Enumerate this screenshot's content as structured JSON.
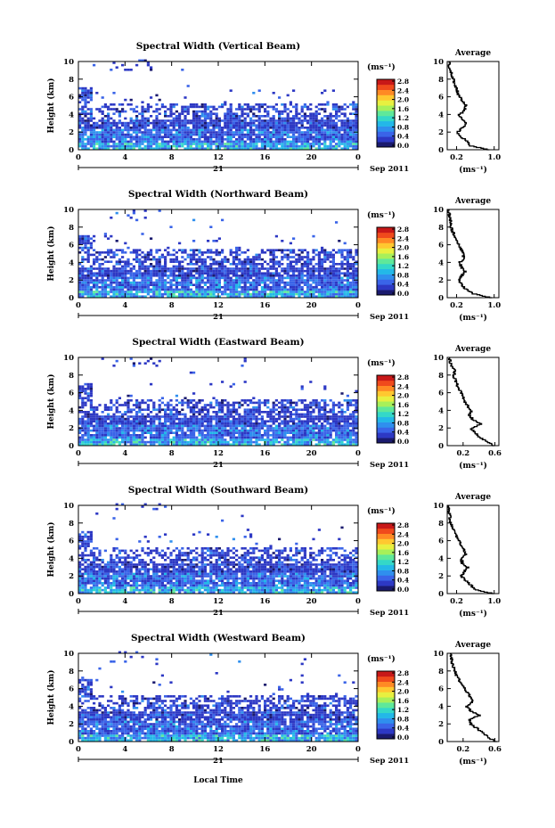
{
  "figure": {
    "avg_title": "Average",
    "height_label": "Height (km)",
    "unit_label": "(ms⁻¹)",
    "day_label": "21",
    "date_label": "Sep 2011",
    "x_axis_label": "Local Time",
    "colors": [
      "#1a1a6e",
      "#2d38c4",
      "#3a64e8",
      "#2f8fee",
      "#23b8e8",
      "#34d8c8",
      "#5fe89a",
      "#a8f05a",
      "#e8f040",
      "#ffc830",
      "#ff8a24",
      "#f04a1c",
      "#c81818"
    ]
  },
  "chart_data": [
    {
      "type": "heatmap",
      "title": "Spectral Width (Vertical Beam)",
      "xlabel": "Local Time",
      "ylabel": "Height (km)",
      "x_ticks": [
        "0",
        "4",
        "8",
        "12",
        "16",
        "20",
        "0"
      ],
      "xlim": [
        0,
        24
      ],
      "y_ticks": [
        "0",
        "2",
        "4",
        "6",
        "8",
        "10"
      ],
      "ylim": [
        0,
        10
      ],
      "colorbar_ticks": [
        "0.0",
        "0.4",
        "0.8",
        "1.2",
        "1.6",
        "2.0",
        "2.4",
        "2.8"
      ],
      "colorbar_unit": "(ms⁻¹)",
      "dense_top_km": 5.0,
      "profile": {
        "title": "Average",
        "x_ticks": [
          "0.2",
          "1.0"
        ],
        "x_tick_values": [
          0.2,
          1.0
        ],
        "xlim": [
          0,
          1.1
        ],
        "xlabel": "(ms⁻¹)",
        "height_km": [
          0,
          0.5,
          1,
          1.5,
          2,
          2.5,
          3,
          3.5,
          4,
          4.5,
          5,
          5.5,
          6,
          6.5,
          7,
          7.5,
          8,
          8.5,
          9,
          9.5,
          10
        ],
        "width": [
          0.9,
          0.5,
          0.42,
          0.3,
          0.22,
          0.3,
          0.42,
          0.32,
          0.25,
          0.38,
          0.4,
          0.33,
          0.27,
          0.22,
          0.2,
          0.16,
          0.13,
          0.1,
          0.07,
          0.05,
          0.04
        ]
      }
    },
    {
      "type": "heatmap",
      "title": "Spectral Width (Northward Beam)",
      "xlabel": "Local Time",
      "ylabel": "Height (km)",
      "x_ticks": [
        "0",
        "4",
        "8",
        "12",
        "16",
        "20",
        "0"
      ],
      "xlim": [
        0,
        24
      ],
      "y_ticks": [
        "0",
        "2",
        "4",
        "6",
        "8",
        "10"
      ],
      "ylim": [
        0,
        10
      ],
      "colorbar_ticks": [
        "0.0",
        "0.4",
        "0.8",
        "1.2",
        "1.6",
        "2.0",
        "2.4",
        "2.8"
      ],
      "colorbar_unit": "(ms⁻¹)",
      "dense_top_km": 5.3,
      "profile": {
        "title": "Average",
        "x_ticks": [
          "0.2",
          "1.0"
        ],
        "x_tick_values": [
          0.2,
          1.0
        ],
        "xlim": [
          0,
          1.1
        ],
        "xlabel": "(ms⁻¹)",
        "height_km": [
          0,
          0.5,
          1,
          1.5,
          2,
          2.5,
          3,
          3.5,
          4,
          4.5,
          5,
          5.5,
          6,
          6.5,
          7,
          7.5,
          8,
          8.5,
          9,
          9.5,
          10
        ],
        "width": [
          0.95,
          0.55,
          0.4,
          0.32,
          0.25,
          0.3,
          0.38,
          0.3,
          0.26,
          0.36,
          0.34,
          0.3,
          0.25,
          0.2,
          0.15,
          0.12,
          0.09,
          0.07,
          0.06,
          0.05,
          0.04
        ]
      }
    },
    {
      "type": "heatmap",
      "title": "Spectral Width (Eastward Beam)",
      "xlabel": "Local Time",
      "ylabel": "Height (km)",
      "x_ticks": [
        "0",
        "4",
        "8",
        "12",
        "16",
        "20",
        "0"
      ],
      "xlim": [
        0,
        24
      ],
      "y_ticks": [
        "0",
        "2",
        "4",
        "6",
        "8",
        "10"
      ],
      "ylim": [
        0,
        10
      ],
      "colorbar_ticks": [
        "0.0",
        "0.4",
        "0.8",
        "1.2",
        "1.6",
        "2.0",
        "2.4",
        "2.8"
      ],
      "colorbar_unit": "(ms⁻¹)",
      "dense_top_km": 5.0,
      "profile": {
        "title": "Average",
        "x_ticks": [
          "0.2",
          "0.6"
        ],
        "x_tick_values": [
          0.2,
          0.6
        ],
        "xlim": [
          0,
          0.65
        ],
        "xlabel": "(ms⁻¹)",
        "height_km": [
          0,
          0.5,
          1,
          1.5,
          2,
          2.5,
          3,
          3.5,
          4,
          4.5,
          5,
          5.5,
          6,
          6.5,
          7,
          7.5,
          8,
          8.5,
          9,
          9.5,
          10
        ],
        "width": [
          0.6,
          0.5,
          0.4,
          0.36,
          0.3,
          0.42,
          0.32,
          0.28,
          0.3,
          0.26,
          0.22,
          0.2,
          0.18,
          0.15,
          0.12,
          0.1,
          0.08,
          0.1,
          0.06,
          0.04,
          0.03
        ]
      }
    },
    {
      "type": "heatmap",
      "title": "Spectral Width (Southward Beam)",
      "xlabel": "Local Time",
      "ylabel": "Height (km)",
      "x_ticks": [
        "0",
        "4",
        "8",
        "12",
        "16",
        "20",
        "0"
      ],
      "xlim": [
        0,
        24
      ],
      "y_ticks": [
        "0",
        "2",
        "4",
        "6",
        "8",
        "10"
      ],
      "ylim": [
        0,
        10
      ],
      "colorbar_ticks": [
        "0.0",
        "0.4",
        "0.8",
        "1.2",
        "1.6",
        "2.0",
        "2.4",
        "2.8"
      ],
      "colorbar_unit": "(ms⁻¹)",
      "dense_top_km": 5.0,
      "profile": {
        "title": "Average",
        "x_ticks": [
          "0.2",
          "1.0"
        ],
        "x_tick_values": [
          0.2,
          1.0
        ],
        "xlim": [
          0,
          1.1
        ],
        "xlabel": "(ms⁻¹)",
        "height_km": [
          0,
          0.5,
          1,
          1.5,
          2,
          2.5,
          3,
          3.5,
          4,
          4.5,
          5,
          5.5,
          6,
          6.5,
          7,
          7.5,
          8,
          8.5,
          9,
          9.5,
          10
        ],
        "width": [
          1.0,
          0.6,
          0.5,
          0.4,
          0.3,
          0.35,
          0.45,
          0.32,
          0.3,
          0.4,
          0.36,
          0.3,
          0.25,
          0.2,
          0.15,
          0.12,
          0.08,
          0.06,
          0.05,
          0.04,
          0.03
        ]
      }
    },
    {
      "type": "heatmap",
      "title": "Spectral Width (Westward Beam)",
      "xlabel": "Local Time",
      "ylabel": "Height (km)",
      "x_ticks": [
        "0",
        "4",
        "8",
        "12",
        "16",
        "20",
        "0"
      ],
      "xlim": [
        0,
        24
      ],
      "y_ticks": [
        "0",
        "2",
        "4",
        "6",
        "8",
        "10"
      ],
      "ylim": [
        0,
        10
      ],
      "colorbar_ticks": [
        "0.0",
        "0.4",
        "0.8",
        "1.2",
        "1.6",
        "2.0",
        "2.4",
        "2.8"
      ],
      "colorbar_unit": "(ms⁻¹)",
      "dense_top_km": 5.0,
      "profile": {
        "title": "Average",
        "x_ticks": [
          "0.2",
          "0.6"
        ],
        "x_tick_values": [
          0.2,
          0.6
        ],
        "xlim": [
          0,
          0.65
        ],
        "xlabel": "(ms⁻¹)",
        "height_km": [
          0,
          0.5,
          1,
          1.5,
          2,
          2.5,
          3,
          3.5,
          4,
          4.5,
          5,
          5.5,
          6,
          6.5,
          7,
          7.5,
          8,
          8.5,
          9,
          9.5,
          10
        ],
        "width": [
          0.62,
          0.52,
          0.45,
          0.38,
          0.3,
          0.28,
          0.4,
          0.3,
          0.25,
          0.32,
          0.3,
          0.26,
          0.22,
          0.18,
          0.15,
          0.12,
          0.1,
          0.08,
          0.06,
          0.05,
          0.04
        ]
      }
    }
  ]
}
